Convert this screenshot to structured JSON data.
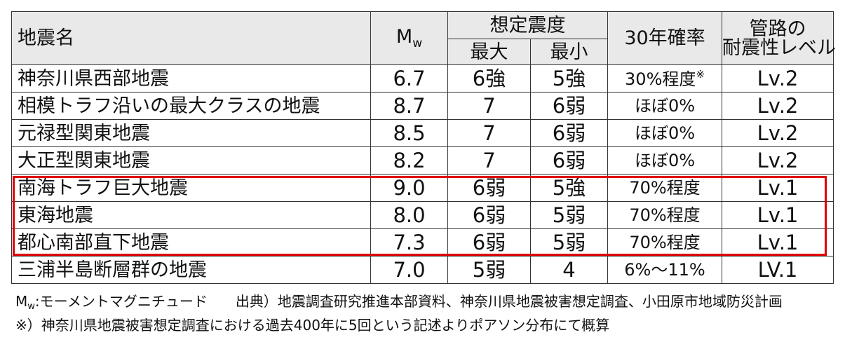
{
  "header": {
    "name": "地震名",
    "mw_main": "M",
    "mw_sub": "w",
    "intensity_group": "想定震度",
    "max": "最大",
    "min": "最小",
    "prob30": "30年確率",
    "pipe_line1": "管路の",
    "pipe_line2": "耐震性レベル"
  },
  "rows": [
    {
      "name": "神奈川県西部地震",
      "mw": "6.7",
      "max": "6強",
      "min": "5強",
      "prob": "30%程度",
      "mark": "※",
      "level": "Lv.2"
    },
    {
      "name": "相模トラフ沿いの最大クラスの地震",
      "mw": "8.7",
      "max": "7",
      "min": "6弱",
      "prob": "ほぼ0%",
      "level": "Lv.2"
    },
    {
      "name": "元禄型関東地震",
      "mw": "8.5",
      "max": "7",
      "min": "6弱",
      "prob": "ほぼ0%",
      "level": "Lv.2"
    },
    {
      "name": "大正型関東地震",
      "mw": "8.2",
      "max": "7",
      "min": "6弱",
      "prob": "ほぼ0%",
      "level": "Lv.2"
    },
    {
      "name": "南海トラフ巨大地震",
      "mw": "9.0",
      "max": "6弱",
      "min": "5強",
      "prob": "70%程度",
      "level": "Lv.1"
    },
    {
      "name": "東海地震",
      "mw": "8.0",
      "max": "6弱",
      "min": "5弱",
      "prob": "70%程度",
      "level": "Lv.1"
    },
    {
      "name": "都心南部直下地震",
      "mw": "7.3",
      "max": "6弱",
      "min": "5弱",
      "prob": "70%程度",
      "level": "Lv.1"
    },
    {
      "name": "三浦半島断層群の地震",
      "mw": "7.0",
      "max": "5弱",
      "min": "4",
      "prob": "6%～11%",
      "level": "LV.1"
    }
  ],
  "notes": {
    "mw_main": "M",
    "mw_sub": "w",
    "mw_def": ":モーメントマグニチュード",
    "source": "出典）地震調査研究推進本部資料、神奈川県地震被害想定調査、小田原市地域防災計画",
    "footnote": "※）神奈川県地震被害想定調査における過去400年に5回という記述よりポアソン分布にて概算"
  },
  "colors": {
    "header_bg": "#e9e9e9",
    "highlight": "#e00000",
    "border": "#333333"
  }
}
